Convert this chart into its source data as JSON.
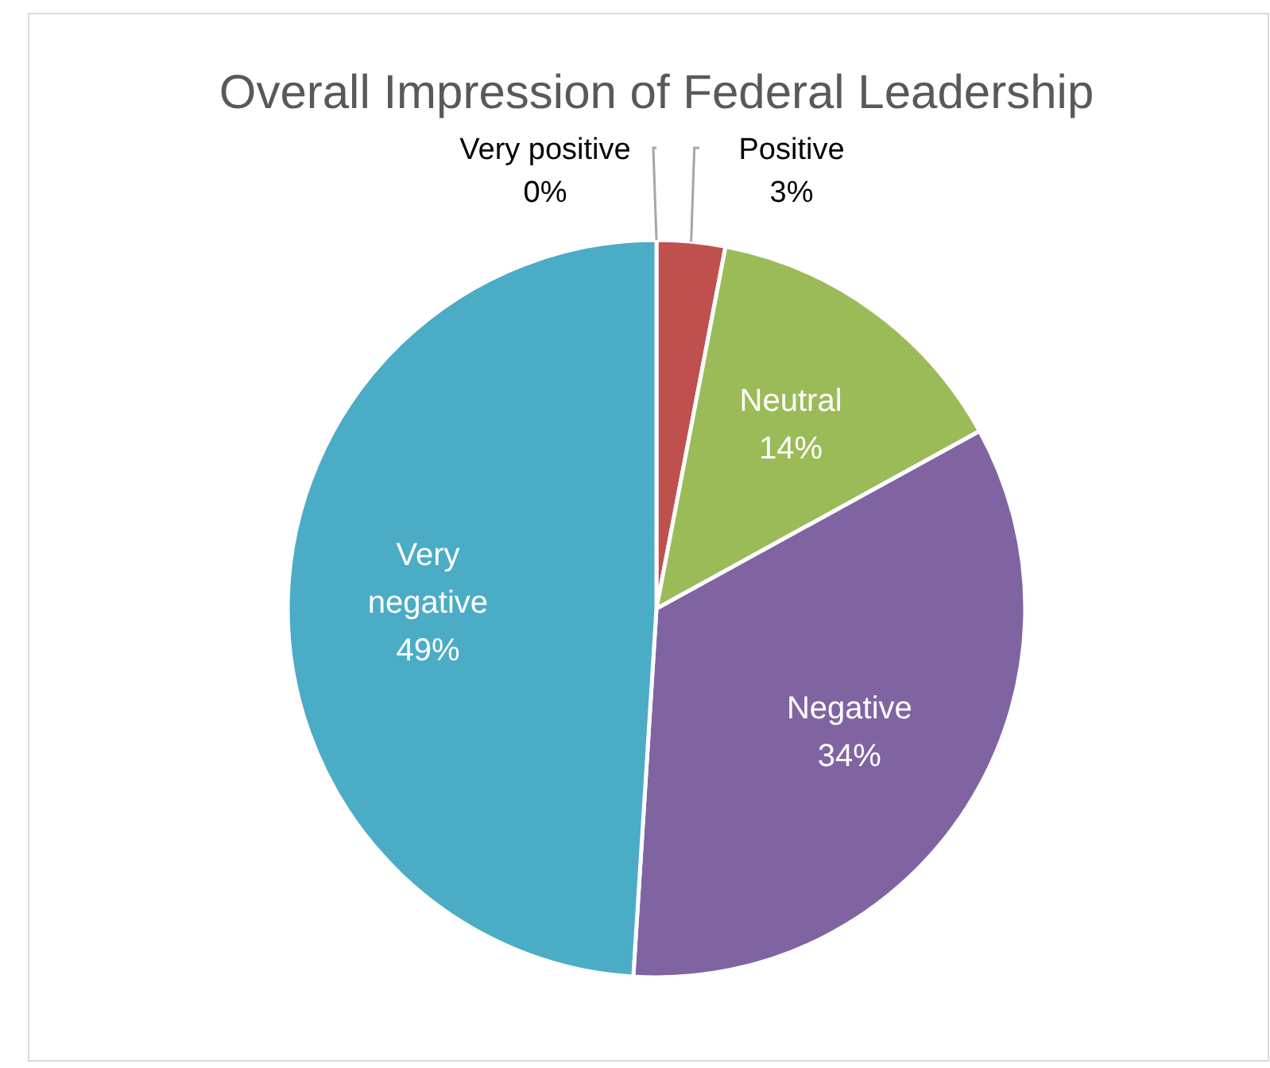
{
  "chart_data": {
    "type": "pie",
    "title": "Overall Impression of Federal Leadership",
    "categories": [
      "Very positive",
      "Positive",
      "Neutral",
      "Negative",
      "Very negative"
    ],
    "values": [
      0,
      3,
      14,
      34,
      49
    ],
    "value_labels": [
      "0%",
      "3%",
      "14%",
      "34%",
      "49%"
    ],
    "colors": [
      "#4f81bd",
      "#c0504d",
      "#9bbb59",
      "#8064a2",
      "#4bacc6"
    ]
  }
}
